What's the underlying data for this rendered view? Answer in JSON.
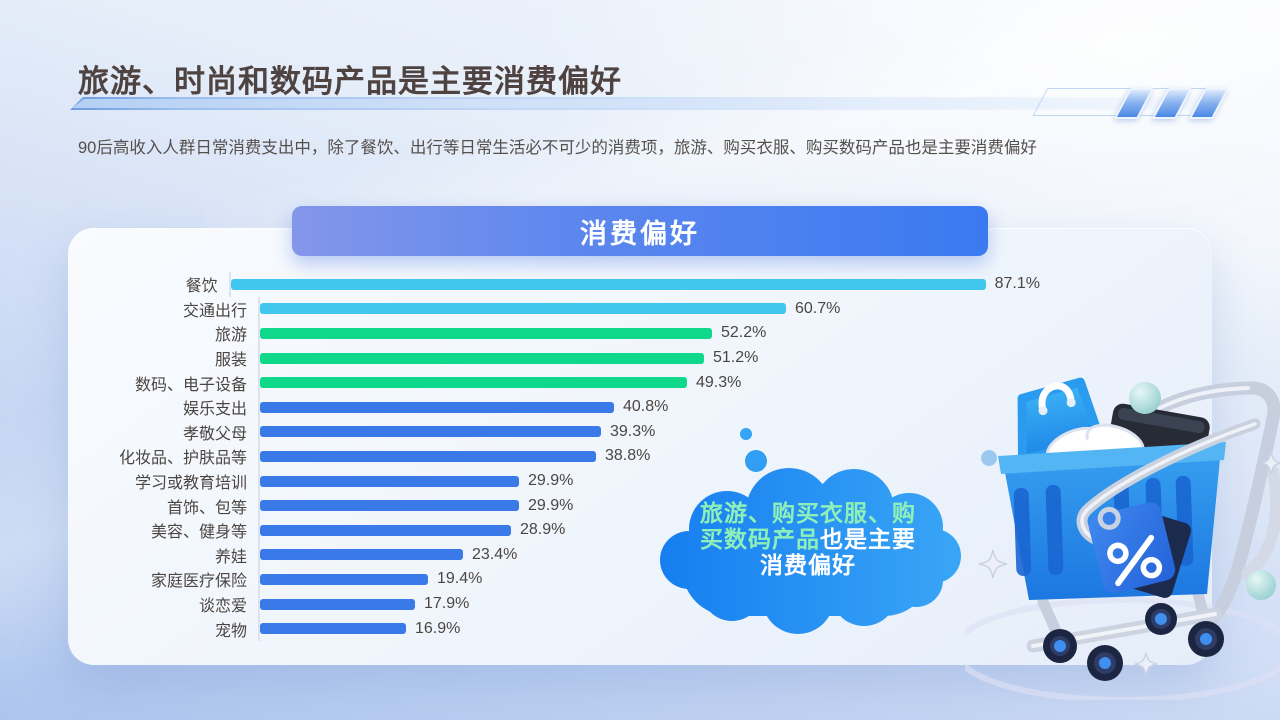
{
  "header": {
    "title": "旅游、时尚和数码产品是主要消费偏好",
    "subtitle": "90后高收入人群日常消费支出中，除了餐饮、出行等日常生活必不可少的消费项，旅游、购买衣服、购买数码产品也是主要消费偏好"
  },
  "chart": {
    "title": "消费偏好"
  },
  "chart_data": {
    "type": "bar",
    "orientation": "horizontal",
    "title": "消费偏好",
    "unit": "percent",
    "xlim": [
      0,
      100
    ],
    "grid": false,
    "categories": [
      "餐饮",
      "交通出行",
      "旅游",
      "服装",
      "数码、电子设备",
      "娱乐支出",
      "孝敬父母",
      "化妆品、护肤品等",
      "学习或教育培训",
      "首饰、包等",
      "美容、健身等",
      "养娃",
      "家庭医疗保险",
      "谈恋爱",
      "宠物"
    ],
    "values": [
      87.1,
      60.7,
      52.2,
      51.2,
      49.3,
      40.8,
      39.3,
      38.8,
      29.9,
      29.9,
      28.9,
      23.4,
      19.4,
      17.9,
      16.9
    ],
    "value_labels": [
      "87.1%",
      "60.7%",
      "52.2%",
      "51.2%",
      "49.3%",
      "40.8%",
      "39.3%",
      "38.8%",
      "29.9%",
      "29.9%",
      "28.9%",
      "23.4%",
      "19.4%",
      "17.9%",
      "16.9%"
    ],
    "bar_colors": [
      "#41c6ee",
      "#41c6ee",
      "#0fd88b",
      "#0fd88b",
      "#0fd88b",
      "#3a79e8",
      "#3a79e8",
      "#3a79e8",
      "#3a79e8",
      "#3a79e8",
      "#3a79e8",
      "#3a79e8",
      "#3a79e8",
      "#3a79e8",
      "#3a79e8"
    ]
  },
  "callout": {
    "line1_green": "旅游、购买衣服、购",
    "line2_green": "买数码产品",
    "line2_white": "也是主要",
    "line3_white": "消费偏好",
    "highlight_color": "#8ef0b8",
    "cloud_color": "#1f8bf2"
  },
  "colors": {
    "title_text": "#4e4341",
    "pill_gradient_start": "#8496ea",
    "pill_gradient_end": "#3a7af1",
    "bar_cyan": "#41c6ee",
    "bar_green": "#0fd88b",
    "bar_blue": "#3a79e8"
  }
}
